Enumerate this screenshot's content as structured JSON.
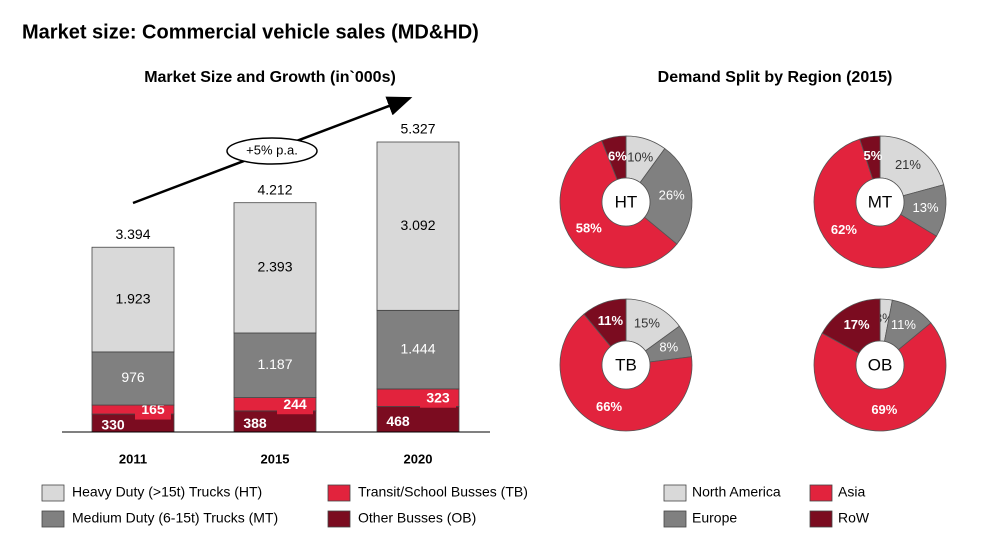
{
  "title": "Market size: Commercial vehicle sales (MD&HD)",
  "chart_data": [
    {
      "type": "stacked-bar",
      "title": "Market Size and Growth (in`000s)",
      "categories": [
        "2011",
        "2015",
        "2020"
      ],
      "series": [
        {
          "name": "Heavy Duty (>15t) Trucks (HT)",
          "color": "#d9d9d9",
          "values": [
            1923,
            2393,
            3092
          ],
          "value_labels": [
            "1.923",
            "2.393",
            "3.092"
          ]
        },
        {
          "name": "Medium Duty (6-15t) Trucks (MT)",
          "color": "#808080",
          "values": [
            976,
            1187,
            1444
          ],
          "value_labels": [
            "976",
            "1.187",
            "1.444"
          ]
        },
        {
          "name": "Transit/School Busses (TB)",
          "color": "#e2233d",
          "values": [
            165,
            244,
            323
          ],
          "value_labels": [
            "165",
            "244",
            "323"
          ]
        },
        {
          "name": "Other Busses (OB)",
          "color": "#7b0c20",
          "values": [
            330,
            388,
            468
          ],
          "value_labels": [
            "330",
            "388",
            "468"
          ]
        }
      ],
      "totals": {
        "values": [
          3394,
          4212,
          5327
        ],
        "value_labels": [
          "3.394",
          "4.212",
          "5.327"
        ]
      },
      "annotation": "+5% p.a."
    },
    {
      "type": "donut",
      "title": "Demand Split by Region (2015)",
      "categories": [
        "North America",
        "Europe",
        "Asia",
        "RoW"
      ],
      "colors": [
        "#d9d9d9",
        "#808080",
        "#e2233d",
        "#7b0c20"
      ],
      "series": [
        {
          "name": "HT",
          "values": [
            10,
            26,
            58,
            6
          ],
          "value_labels": [
            "10%",
            "26%",
            "58%",
            "6%"
          ]
        },
        {
          "name": "MT",
          "values": [
            21,
            13,
            62,
            5
          ],
          "value_labels": [
            "21%",
            "13%",
            "62%",
            "5%"
          ]
        },
        {
          "name": "TB",
          "values": [
            15,
            8,
            66,
            11
          ],
          "value_labels": [
            "15%",
            "8%",
            "66%",
            "11%"
          ]
        },
        {
          "name": "OB",
          "values": [
            3,
            11,
            69,
            17
          ],
          "value_labels": [
            "3%",
            "11%",
            "69%",
            "17%"
          ]
        }
      ]
    }
  ]
}
